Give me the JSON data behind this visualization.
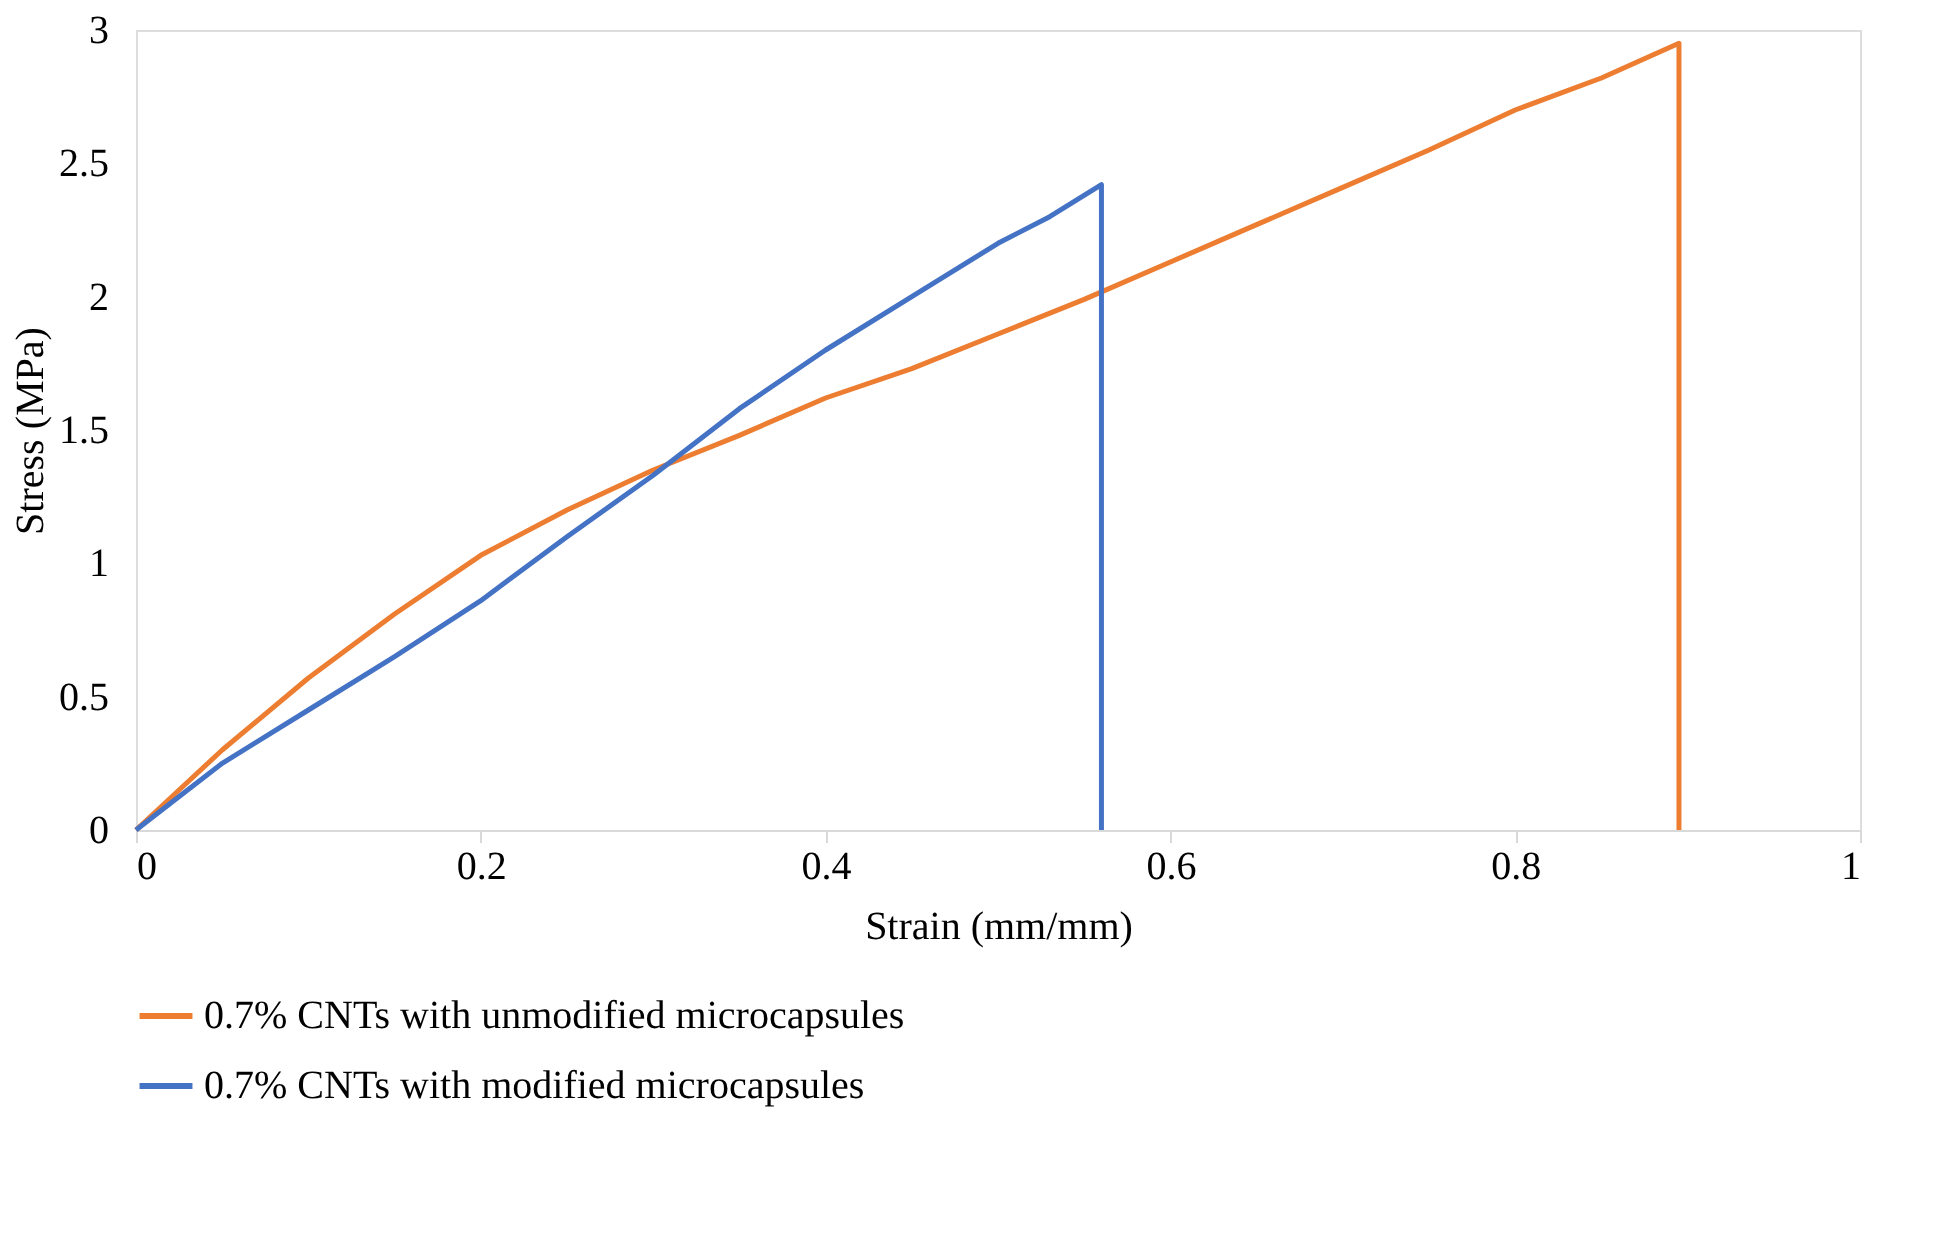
{
  "chart_data": {
    "type": "line",
    "xlabel": "Strain (mm/mm)",
    "ylabel": "Stress (MPa)",
    "xlim": [
      0,
      1
    ],
    "xticks": [
      0,
      0.2,
      0.4,
      0.6,
      0.8,
      1
    ],
    "ylim": [
      0,
      3
    ],
    "yticks": [
      0,
      0.5,
      1,
      1.5,
      2,
      2.5,
      3
    ],
    "grid": false,
    "legend": "bottom",
    "marker": "none",
    "line_style": "solid",
    "series": [
      {
        "name": "0.7% CNTs with unmodified microcapsules",
        "color": "#ed7d31",
        "x": [
          0,
          0.02,
          0.05,
          0.1,
          0.15,
          0.2,
          0.25,
          0.3,
          0.35,
          0.4,
          0.45,
          0.5,
          0.55,
          0.6,
          0.65,
          0.7,
          0.75,
          0.8,
          0.85,
          0.895,
          0.895
        ],
        "values": [
          0,
          0.12,
          0.3,
          0.57,
          0.81,
          1.03,
          1.2,
          1.35,
          1.48,
          1.62,
          1.73,
          1.86,
          1.99,
          2.13,
          2.27,
          2.41,
          2.55,
          2.7,
          2.82,
          2.95,
          0
        ]
      },
      {
        "name": "0.7% CNTs with modified microcapsules",
        "color": "#4472c4",
        "x": [
          0,
          0.02,
          0.05,
          0.1,
          0.15,
          0.2,
          0.25,
          0.3,
          0.35,
          0.4,
          0.45,
          0.5,
          0.53,
          0.56,
          0.56
        ],
        "values": [
          0,
          0.1,
          0.25,
          0.45,
          0.65,
          0.86,
          1.1,
          1.33,
          1.58,
          1.8,
          2.0,
          2.2,
          2.3,
          2.42,
          0
        ]
      }
    ]
  }
}
